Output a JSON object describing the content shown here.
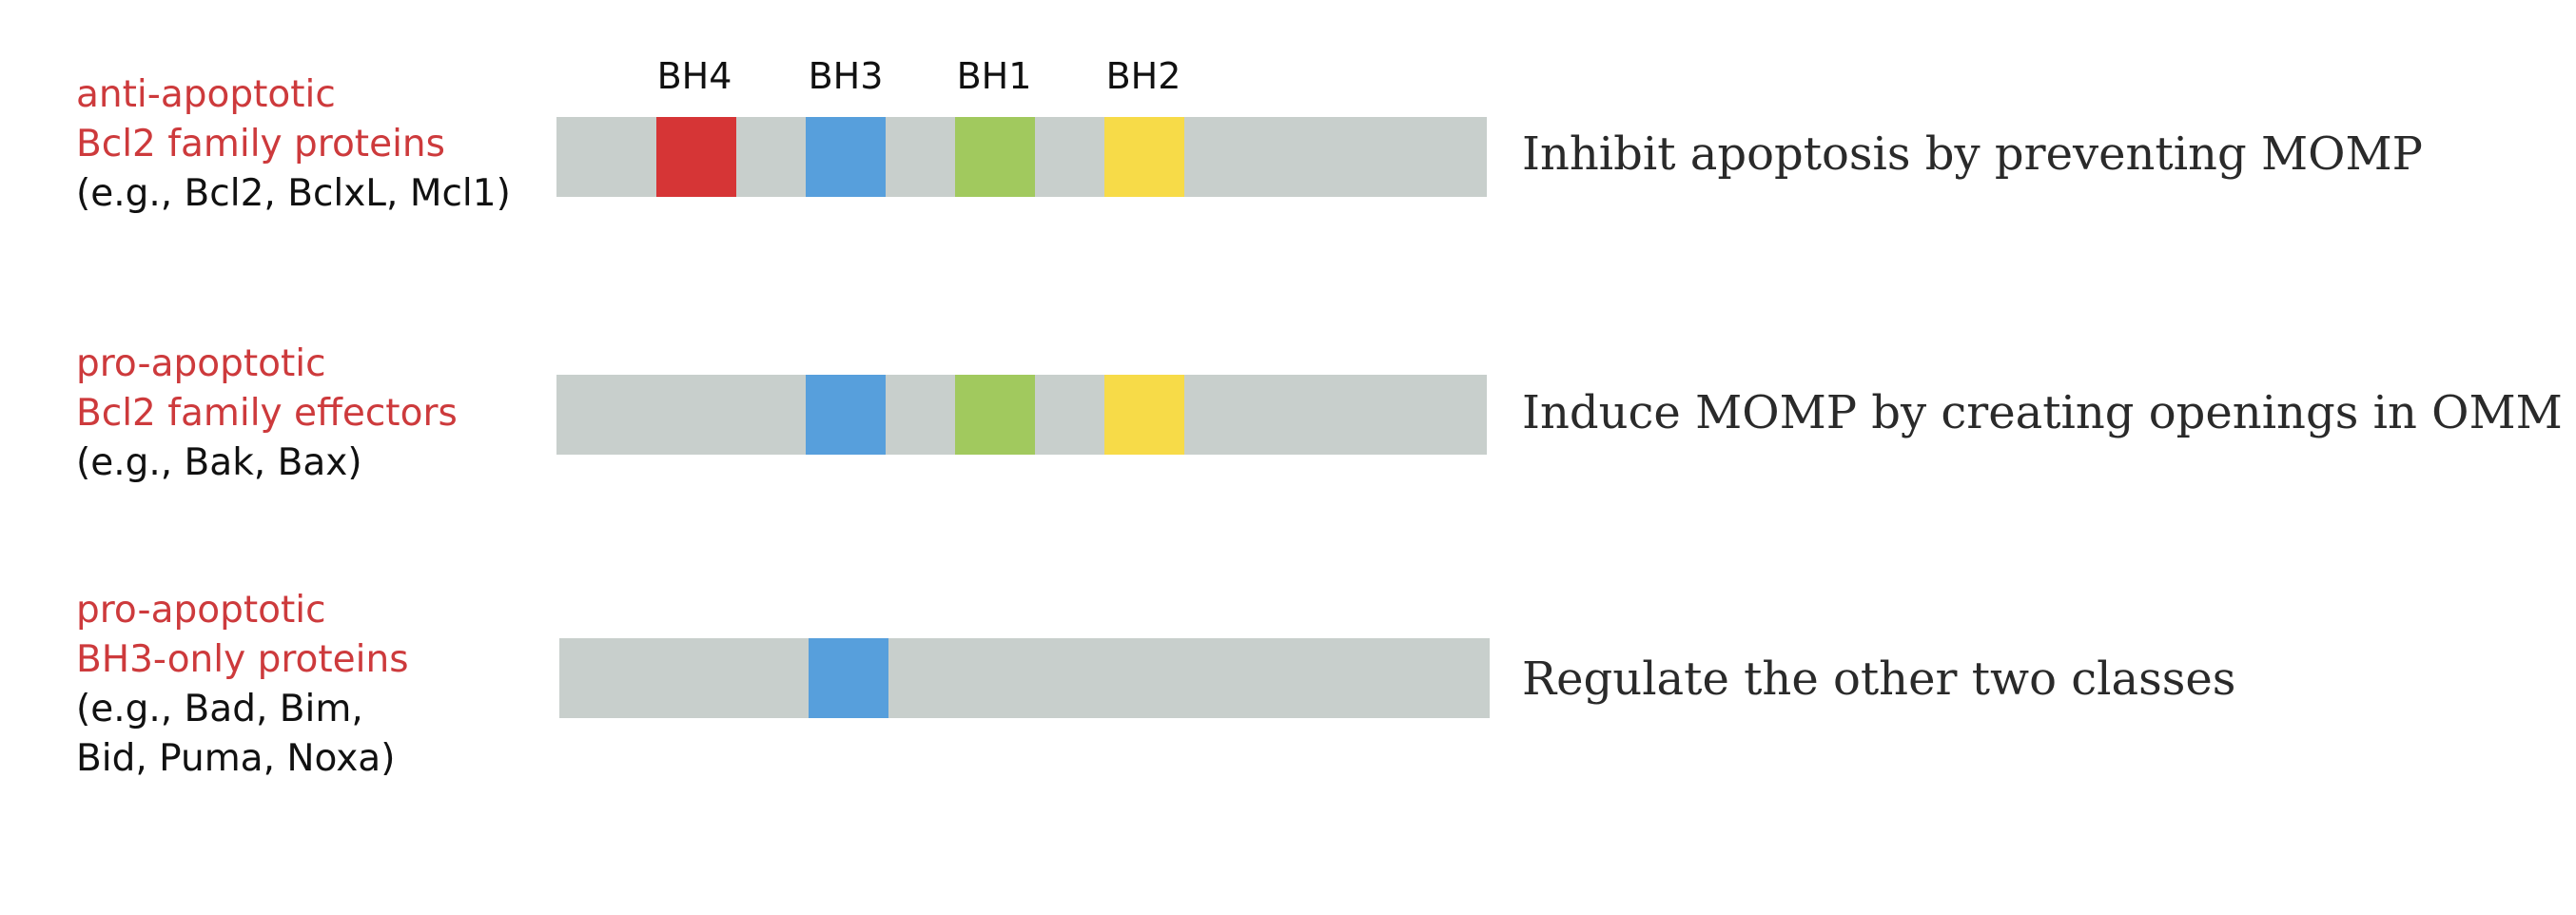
{
  "domains": [
    {
      "name": "BH4",
      "color": "#d63536"
    },
    {
      "name": "BH3",
      "color": "#579fdc"
    },
    {
      "name": "BH1",
      "color": "#a1c95e"
    },
    {
      "name": "BH2",
      "color": "#f7db48"
    }
  ],
  "bar_color": "#c8cfcc",
  "classes": [
    {
      "title_lines": [
        "anti-apoptotic",
        "Bcl2 family proteins"
      ],
      "example_lines": [
        "(e.g., Bcl2, BclxL, Mcl1)"
      ],
      "domains_present": [
        "BH4",
        "BH3",
        "BH1",
        "BH2"
      ],
      "function": "Inhibit apoptosis by preventing MOMP"
    },
    {
      "title_lines": [
        "pro-apoptotic",
        "Bcl2 family effectors"
      ],
      "example_lines": [
        "(e.g., Bak, Bax)"
      ],
      "domains_present": [
        "BH3",
        "BH1",
        "BH2"
      ],
      "function": "Induce MOMP by creating openings in OMM"
    },
    {
      "title_lines": [
        "pro-apoptotic",
        "BH3-only proteins"
      ],
      "example_lines": [
        "(e.g., Bad, Bim,",
        "Bid, Puma, Noxa)"
      ],
      "domains_present": [
        "BH3"
      ],
      "function": "Regulate the other two classes"
    }
  ]
}
